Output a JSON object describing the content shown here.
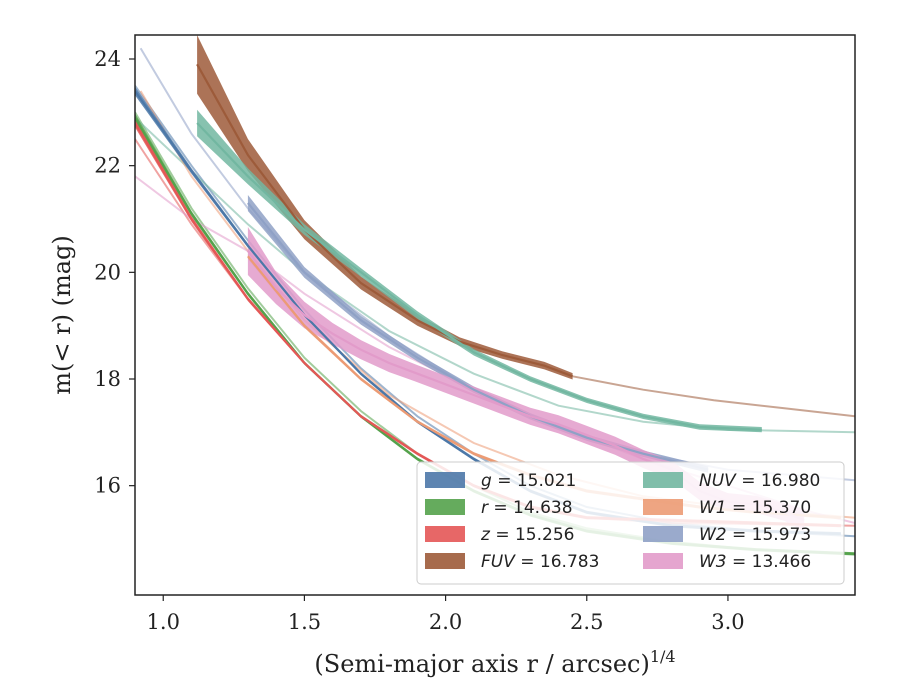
{
  "chart_data": {
    "type": "line",
    "title": "",
    "xlabel": "(Semi-major axis r / arcsec)",
    "xlabel_exponent": "1/4",
    "ylabel": "m(< r) (mag)",
    "xlim": [
      0.9,
      3.45
    ],
    "ylim": [
      24.45,
      13.95
    ],
    "y_inverted": true,
    "grid": false,
    "legend_position": "lower-right",
    "xticks": [
      "1.0",
      "1.5",
      "2.0",
      "2.5",
      "3.0"
    ],
    "yticks": [
      "16",
      "18",
      "20",
      "22",
      "24"
    ],
    "series": [
      {
        "name": "g",
        "label_value": "= 15.021",
        "color": "#4c78a8",
        "extrapolation": {
          "x": [
            0.9,
            1.1,
            1.3,
            1.5,
            1.7,
            1.9,
            2.1,
            2.3,
            2.5,
            2.8,
            3.1,
            3.45
          ],
          "y": [
            23.5,
            22.0,
            20.6,
            19.3,
            18.2,
            17.3,
            16.6,
            16.0,
            15.6,
            15.3,
            15.15,
            15.05
          ]
        },
        "measured": {
          "x": [
            0.9,
            1.1,
            1.3,
            1.5,
            1.7,
            1.9,
            2.1,
            2.3,
            2.5,
            2.8,
            3.1,
            3.4
          ],
          "y": [
            23.4,
            21.9,
            20.5,
            19.2,
            18.1,
            17.2,
            16.5,
            15.9,
            15.5,
            15.25,
            15.15,
            15.1
          ],
          "band": [
            0.08,
            0.05,
            0.04,
            0.03,
            0.03,
            0.03,
            0.03,
            0.03,
            0.03,
            0.03,
            0.03,
            0.03
          ]
        }
      },
      {
        "name": "r",
        "label_value": "= 14.638",
        "color": "#54a24b",
        "extrapolation": {
          "x": [
            0.9,
            1.1,
            1.3,
            1.5,
            1.7,
            1.9,
            2.1,
            2.3,
            2.5,
            2.8,
            3.1,
            3.45
          ],
          "y": [
            23.0,
            21.2,
            19.7,
            18.4,
            17.4,
            16.6,
            16.0,
            15.5,
            15.2,
            14.95,
            14.8,
            14.72
          ]
        },
        "measured": {
          "x": [
            0.9,
            1.1,
            1.3,
            1.5,
            1.7,
            1.9,
            2.1,
            2.3,
            2.5,
            2.8,
            3.1,
            3.45
          ],
          "y": [
            22.9,
            21.1,
            19.6,
            18.3,
            17.3,
            16.5,
            15.9,
            15.45,
            15.15,
            14.92,
            14.8,
            14.72
          ],
          "band": [
            0.08,
            0.05,
            0.04,
            0.03,
            0.03,
            0.03,
            0.03,
            0.03,
            0.03,
            0.03,
            0.03,
            0.03
          ]
        }
      },
      {
        "name": "z",
        "label_value": "= 15.256",
        "color": "#e45756",
        "extrapolation": {
          "x": [
            0.9,
            1.1,
            1.3,
            1.5,
            1.7,
            1.9,
            2.1,
            2.3,
            2.5,
            2.8,
            3.1,
            3.45
          ],
          "y": [
            22.5,
            20.9,
            19.5,
            18.3,
            17.3,
            16.6,
            16.0,
            15.6,
            15.4,
            15.3,
            15.28,
            15.25
          ]
        },
        "measured": {
          "x": [
            0.9,
            1.1,
            1.3,
            1.5,
            1.7,
            1.9,
            2.1,
            2.3,
            2.5,
            2.8,
            3.1,
            3.4
          ],
          "y": [
            22.8,
            21.0,
            19.5,
            18.3,
            17.3,
            16.6,
            16.0,
            15.6,
            15.4,
            15.35,
            15.3,
            15.25
          ],
          "band": [
            0.08,
            0.05,
            0.04,
            0.03,
            0.03,
            0.03,
            0.03,
            0.03,
            0.03,
            0.03,
            0.03,
            0.03
          ]
        }
      },
      {
        "name": "FUV",
        "label_value": "= 16.783",
        "color": "#9d5b3a",
        "extrapolation": {
          "x": [
            2.45,
            2.7,
            2.95,
            3.2,
            3.45
          ],
          "y": [
            18.05,
            17.8,
            17.6,
            17.45,
            17.3
          ]
        },
        "measured": {
          "x": [
            1.12,
            1.3,
            1.5,
            1.7,
            1.9,
            2.05,
            2.2,
            2.35,
            2.45
          ],
          "y": [
            23.9,
            22.2,
            20.8,
            19.8,
            19.1,
            18.7,
            18.45,
            18.25,
            18.05
          ],
          "band": [
            0.55,
            0.3,
            0.18,
            0.12,
            0.1,
            0.08,
            0.07,
            0.07,
            0.06
          ]
        }
      },
      {
        "name": "NUV",
        "label_value": "= 16.980",
        "color": "#72b7a1",
        "extrapolation": {
          "x": [
            0.9,
            1.1,
            1.3,
            1.5,
            1.8,
            2.1,
            2.4,
            2.7,
            3.0,
            3.45
          ],
          "y": [
            22.9,
            21.9,
            20.9,
            20.0,
            18.9,
            18.1,
            17.5,
            17.2,
            17.05,
            17.0
          ]
        },
        "measured": {
          "x": [
            1.12,
            1.3,
            1.5,
            1.7,
            1.9,
            2.1,
            2.3,
            2.5,
            2.7,
            2.9,
            3.12
          ],
          "y": [
            22.8,
            21.8,
            20.8,
            20.0,
            19.2,
            18.5,
            18.0,
            17.6,
            17.3,
            17.1,
            17.05
          ],
          "band": [
            0.25,
            0.15,
            0.1,
            0.08,
            0.07,
            0.06,
            0.05,
            0.05,
            0.05,
            0.05,
            0.05
          ]
        }
      },
      {
        "name": "W1",
        "label_value": "= 15.370",
        "color": "#ec9b74",
        "extrapolation": {
          "x": [
            0.92,
            1.1,
            1.3,
            1.5,
            1.8,
            2.1,
            2.4,
            2.7,
            3.0,
            3.45
          ],
          "y": [
            23.4,
            21.8,
            20.4,
            19.1,
            17.7,
            16.8,
            16.2,
            15.8,
            15.6,
            15.4
          ]
        },
        "measured": {
          "x": [
            1.3,
            1.5,
            1.7,
            1.9,
            2.1,
            2.3,
            2.5,
            2.7,
            2.9,
            3.1,
            3.4
          ],
          "y": [
            20.3,
            19.0,
            18.0,
            17.2,
            16.6,
            16.2,
            15.9,
            15.75,
            15.6,
            15.5,
            15.4
          ],
          "band": [
            0.05,
            0.04,
            0.03,
            0.03,
            0.03,
            0.03,
            0.03,
            0.03,
            0.03,
            0.03,
            0.03
          ]
        }
      },
      {
        "name": "W2",
        "label_value": "= 15.973",
        "color": "#8fa1c6",
        "extrapolation": {
          "x": [
            0.92,
            1.1,
            1.3,
            1.5,
            1.8,
            2.1,
            2.4,
            2.7,
            3.0,
            3.45
          ],
          "y": [
            24.2,
            22.6,
            21.2,
            20.0,
            18.8,
            17.8,
            17.1,
            16.6,
            16.3,
            16.1
          ]
        },
        "measured": {
          "x": [
            1.3,
            1.5,
            1.7,
            1.9,
            2.1,
            2.3,
            2.5,
            2.7,
            2.93
          ],
          "y": [
            21.3,
            20.0,
            19.1,
            18.4,
            17.8,
            17.3,
            16.9,
            16.6,
            16.3
          ],
          "band": [
            0.15,
            0.1,
            0.08,
            0.07,
            0.06,
            0.06,
            0.06,
            0.06,
            0.06
          ]
        }
      },
      {
        "name": "W3",
        "label_value": "= 13.466",
        "color": "#e29bca",
        "extrapolation": {
          "x": [
            0.9,
            1.1,
            1.3,
            1.5,
            1.8,
            2.1,
            2.4,
            2.7,
            3.0,
            3.3,
            3.45
          ],
          "y": [
            21.8,
            21.0,
            20.4,
            19.6,
            18.6,
            17.8,
            17.1,
            16.5,
            16.0,
            15.5,
            15.3
          ]
        },
        "measured": {
          "x": [
            1.3,
            1.4,
            1.5,
            1.6,
            1.7,
            1.8,
            1.9,
            2.0,
            2.1,
            2.2,
            2.3,
            2.4,
            2.5,
            2.6,
            2.7,
            2.8,
            2.9,
            3.0,
            3.1,
            3.2,
            3.27
          ],
          "y": [
            20.4,
            19.7,
            19.2,
            18.85,
            18.55,
            18.3,
            18.1,
            17.9,
            17.7,
            17.5,
            17.3,
            17.15,
            16.95,
            16.75,
            16.5,
            16.3,
            15.9,
            15.7,
            15.65,
            15.5,
            15.35
          ],
          "band": [
            0.45,
            0.3,
            0.25,
            0.2,
            0.18,
            0.17,
            0.16,
            0.16,
            0.16,
            0.16,
            0.16,
            0.17,
            0.17,
            0.17,
            0.17,
            0.17,
            0.17,
            0.16,
            0.16,
            0.16,
            0.2
          ]
        }
      }
    ]
  }
}
